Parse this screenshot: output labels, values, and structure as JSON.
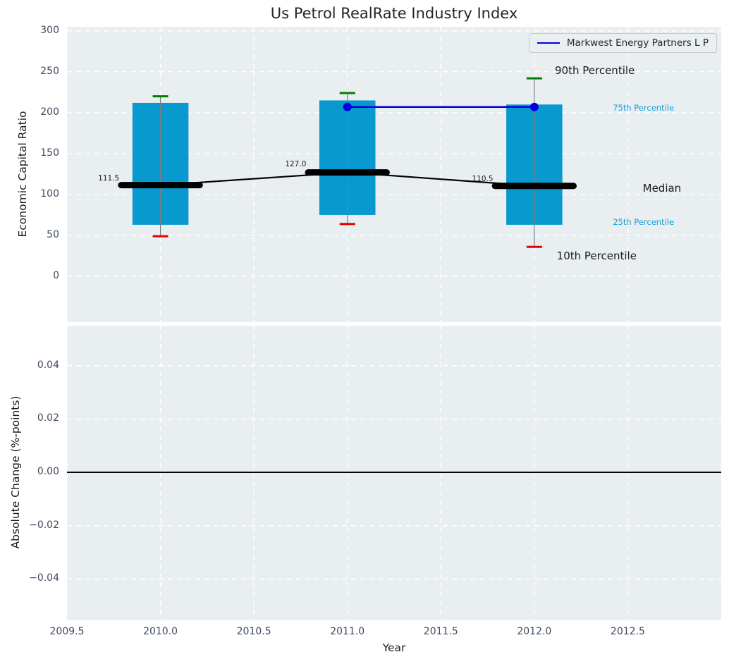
{
  "title": "Us Petrol RealRate Industry Index",
  "legend": {
    "label": "Markwest Energy Partners L P",
    "line_color": "#0000dd"
  },
  "x_axis": {
    "label": "Year",
    "tick_labels": [
      "2009.5",
      "2010.0",
      "2010.5",
      "2011.0",
      "2011.5",
      "2012.0",
      "2012.5"
    ]
  },
  "colors": {
    "bar": "#0899ce",
    "whisker": "#7f7f7f",
    "cap_top": "#008000",
    "cap_bottom": "#e60000",
    "median": "#000000",
    "company_line": "#0000dd",
    "plot_bg": "#e9eef1",
    "grid": "#ffffff",
    "tick_label": "#3e4a5f",
    "cyan_label": "#179fd9",
    "dark_label": "#1a1a1a"
  },
  "chart_data": [
    {
      "type": "bar",
      "subtype": "percentile-box-bars-with-line",
      "title": "Us Petrol RealRate Industry Index",
      "ylabel": "Economic Capital Ratio",
      "xlabel": "Year",
      "xlim": [
        2009.5,
        2013.0
      ],
      "ylim": [
        -56,
        305
      ],
      "grid": true,
      "legend_position": "upper right",
      "xticks": [
        2009.5,
        2010.0,
        2010.5,
        2011.0,
        2011.5,
        2012.0,
        2012.5
      ],
      "yticks": [
        0,
        50,
        100,
        150,
        200,
        250,
        300
      ],
      "ytick_labels": [
        "0",
        "50",
        "100",
        "150",
        "200",
        "250",
        "300"
      ],
      "boxes": [
        {
          "year": 2010,
          "p10": 49,
          "p25": 63,
          "median": 111.5,
          "p75": 212,
          "p90": 220,
          "median_label": "111.5"
        },
        {
          "year": 2011,
          "p10": 64,
          "p25": 75,
          "median": 127.0,
          "p75": 215,
          "p90": 224,
          "median_label": "127.0"
        },
        {
          "year": 2012,
          "p10": 36,
          "p25": 63,
          "median": 110.5,
          "p75": 210,
          "p90": 242,
          "median_label": "110.5"
        }
      ],
      "bar_width_years": 0.3,
      "median_segment_halfwidth_years": 0.21,
      "median_line": {
        "x": [
          2010,
          2011,
          2012
        ],
        "y": [
          111.5,
          127.0,
          110.5
        ]
      },
      "series": [
        {
          "name": "Markwest Energy Partners L P",
          "x": [
            2011,
            2012
          ],
          "y": [
            207,
            207
          ],
          "color": "#0000dd",
          "marker": "circle"
        }
      ],
      "annotations": [
        {
          "text": "90th Percentile",
          "x": 2012.11,
          "y": 252,
          "color": "#1a1a1a",
          "size": 15
        },
        {
          "text": "75th Percentile",
          "x": 2012.42,
          "y": 206,
          "color": "#179fd9",
          "size": 11.5
        },
        {
          "text": "Median",
          "x": 2012.58,
          "y": 108,
          "color": "#1a1a1a",
          "size": 15
        },
        {
          "text": "25th Percentile",
          "x": 2012.42,
          "y": 66,
          "color": "#179fd9",
          "size": 11.5
        },
        {
          "text": "10th Percentile",
          "x": 2012.12,
          "y": 25,
          "color": "#1a1a1a",
          "size": 15
        }
      ],
      "median_value_labels": [
        {
          "text": "111.5",
          "x_right": 2009.78,
          "y": 120
        },
        {
          "text": "127.0",
          "x_right": 2010.78,
          "y": 137
        },
        {
          "text": "110.5",
          "x_right": 2011.78,
          "y": 119
        }
      ]
    },
    {
      "type": "line",
      "subtype": "empty-with-zero-line",
      "ylabel": "Absolute Change (%-points)",
      "xlim": [
        2009.5,
        2013.0
      ],
      "ylim": [
        -0.0555,
        0.055
      ],
      "grid": true,
      "zero_line": 0.0,
      "xticks": [
        2009.5,
        2010.0,
        2010.5,
        2011.0,
        2011.5,
        2012.0,
        2012.5
      ],
      "yticks": [
        -0.04,
        -0.02,
        0.0,
        0.02,
        0.04
      ],
      "ytick_labels": [
        "−0.04",
        "−0.02",
        "0.00",
        "0.02",
        "0.04"
      ]
    }
  ]
}
